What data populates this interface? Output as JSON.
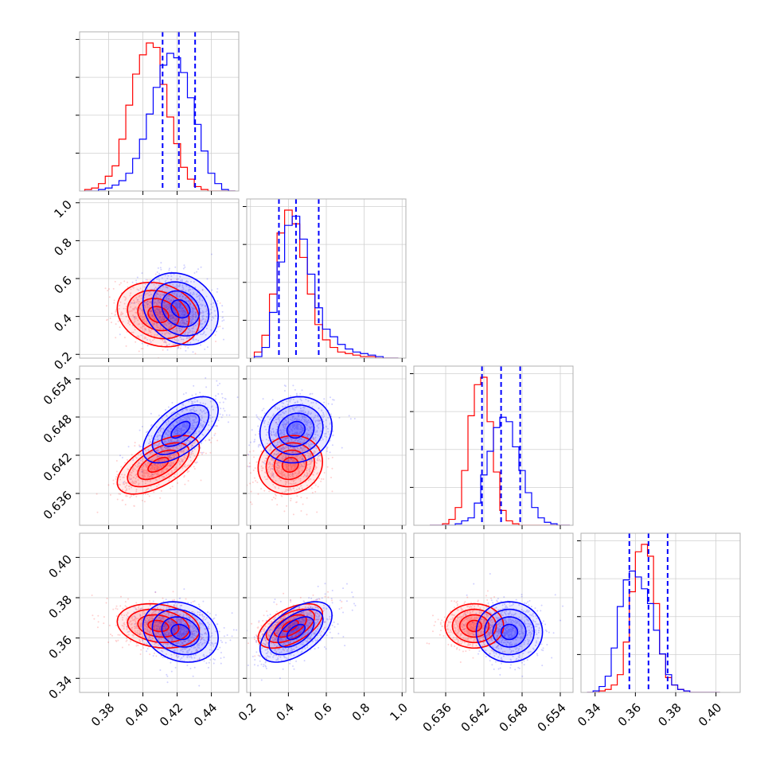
{
  "chart_data": {
    "type": "corner",
    "colors": {
      "sample_a": "#ff0000",
      "sample_b": "#0000ff"
    },
    "params": [
      {
        "range": [
          0.363,
          0.456
        ],
        "ticks": [
          0.38,
          0.4,
          0.42,
          0.44
        ],
        "tick_labels": [
          "0.38",
          "0.40",
          "0.42",
          "0.44"
        ],
        "hist_bins": [
          0.366,
          0.37,
          0.374,
          0.378,
          0.382,
          0.386,
          0.39,
          0.394,
          0.398,
          0.402,
          0.406,
          0.41,
          0.414,
          0.418,
          0.422,
          0.426,
          0.43,
          0.434,
          0.438,
          0.442,
          0.446,
          0.45,
          0.454
        ],
        "hist_red": [
          0.01,
          0.02,
          0.05,
          0.1,
          0.17,
          0.35,
          0.58,
          0.79,
          0.92,
          1.0,
          0.97,
          0.72,
          0.5,
          0.32,
          0.16,
          0.08,
          0.03,
          0.01,
          0.0,
          0.0,
          0.0,
          0.0
        ],
        "hist_blue": [
          0.0,
          0.0,
          0.01,
          0.02,
          0.04,
          0.07,
          0.12,
          0.22,
          0.35,
          0.52,
          0.7,
          0.85,
          0.93,
          0.9,
          0.8,
          0.63,
          0.45,
          0.27,
          0.12,
          0.05,
          0.01,
          0.0
        ],
        "quantiles": [
          0.4115,
          0.421,
          0.4305
        ],
        "mean_red": 0.409,
        "mean_blue": 0.422,
        "sd_red": 0.012,
        "sd_blue": 0.011
      },
      {
        "range": [
          0.18,
          1.02
        ],
        "ticks": [
          0.2,
          0.4,
          0.6,
          0.8,
          1.0
        ],
        "tick_labels": [
          "0.2",
          "0.4",
          "0.6",
          "0.8",
          "1.0"
        ],
        "hist_bins": [
          0.22,
          0.26,
          0.3,
          0.34,
          0.38,
          0.42,
          0.46,
          0.5,
          0.54,
          0.58,
          0.62,
          0.66,
          0.7,
          0.74,
          0.78,
          0.82,
          0.86,
          0.9,
          0.94,
          0.98
        ],
        "hist_red": [
          0.04,
          0.15,
          0.42,
          0.82,
          0.97,
          0.88,
          0.66,
          0.42,
          0.22,
          0.12,
          0.07,
          0.04,
          0.03,
          0.02,
          0.01,
          0.01,
          0.0,
          0.0,
          0.0
        ],
        "hist_blue": [
          0.01,
          0.07,
          0.3,
          0.63,
          0.87,
          0.93,
          0.78,
          0.55,
          0.33,
          0.19,
          0.14,
          0.09,
          0.06,
          0.04,
          0.03,
          0.02,
          0.01,
          0.0,
          0.0
        ],
        "quantiles": [
          0.35,
          0.44,
          0.56
        ],
        "mean_red": 0.41,
        "mean_blue": 0.44,
        "sd_red": 0.085,
        "sd_blue": 0.095
      },
      {
        "range": [
          0.631,
          0.656
        ],
        "ticks": [
          0.636,
          0.642,
          0.648,
          0.654
        ],
        "tick_labels": [
          "0.636",
          "0.642",
          "0.648",
          "0.654"
        ],
        "hist_bins": [
          0.6335,
          0.6345,
          0.6355,
          0.6365,
          0.6375,
          0.6385,
          0.6395,
          0.6405,
          0.6415,
          0.6425,
          0.6435,
          0.6445,
          0.6455,
          0.6465,
          0.6475,
          0.6485,
          0.6495,
          0.6505,
          0.6515,
          0.6525,
          0.6535,
          0.6545,
          0.6555
        ],
        "hist_red": [
          0.0,
          0.0,
          0.01,
          0.04,
          0.12,
          0.37,
          0.74,
          0.95,
          1.0,
          0.7,
          0.36,
          0.1,
          0.03,
          0.01,
          0.0,
          0.0,
          0.0,
          0.0,
          0.0,
          0.0,
          0.0,
          0.0
        ],
        "hist_blue": [
          0.0,
          0.0,
          0.0,
          0.0,
          0.01,
          0.03,
          0.05,
          0.15,
          0.34,
          0.5,
          0.66,
          0.73,
          0.7,
          0.53,
          0.37,
          0.22,
          0.12,
          0.05,
          0.02,
          0.01,
          0.0,
          0.0
        ],
        "quantiles": [
          0.6417,
          0.6447,
          0.6477
        ],
        "mean_red": 0.6405,
        "mean_blue": 0.646,
        "sd_red": 0.0023,
        "sd_blue": 0.0026
      },
      {
        "range": [
          0.333,
          0.412
        ],
        "ticks": [
          0.34,
          0.36,
          0.38,
          0.4
        ],
        "tick_labels": [
          "0.34",
          "0.36",
          "0.38",
          "0.40"
        ],
        "hist_bins": [
          0.336,
          0.339,
          0.342,
          0.345,
          0.348,
          0.351,
          0.354,
          0.357,
          0.36,
          0.363,
          0.366,
          0.369,
          0.372,
          0.375,
          0.378,
          0.381,
          0.384,
          0.387,
          0.39,
          0.393,
          0.396,
          0.399,
          0.402
        ],
        "hist_red": [
          0.0,
          0.0,
          0.01,
          0.02,
          0.05,
          0.12,
          0.34,
          0.68,
          0.95,
          1.0,
          0.92,
          0.6,
          0.26,
          0.1,
          0.05,
          0.02,
          0.01,
          0.0,
          0.0,
          0.0,
          0.0,
          0.0
        ],
        "hist_blue": [
          0.0,
          0.01,
          0.04,
          0.11,
          0.3,
          0.58,
          0.76,
          0.82,
          0.78,
          0.7,
          0.6,
          0.42,
          0.26,
          0.12,
          0.05,
          0.02,
          0.01,
          0.0,
          0.0,
          0.0,
          0.0,
          0.0
        ],
        "quantiles": [
          0.357,
          0.3665,
          0.376
        ],
        "mean_red": 0.366,
        "mean_blue": 0.363,
        "sd_red": 0.0055,
        "sd_blue": 0.0075
      }
    ],
    "correlations": {
      "1-0": -0.2,
      "2-0": 0.6,
      "2-1": 0.1,
      "3-0": -0.2,
      "3-1": 0.55,
      "3-2": 0.0
    },
    "grid": true,
    "contour_levels_sigma": [
      0.5,
      1.0,
      1.5,
      2.0
    ]
  }
}
